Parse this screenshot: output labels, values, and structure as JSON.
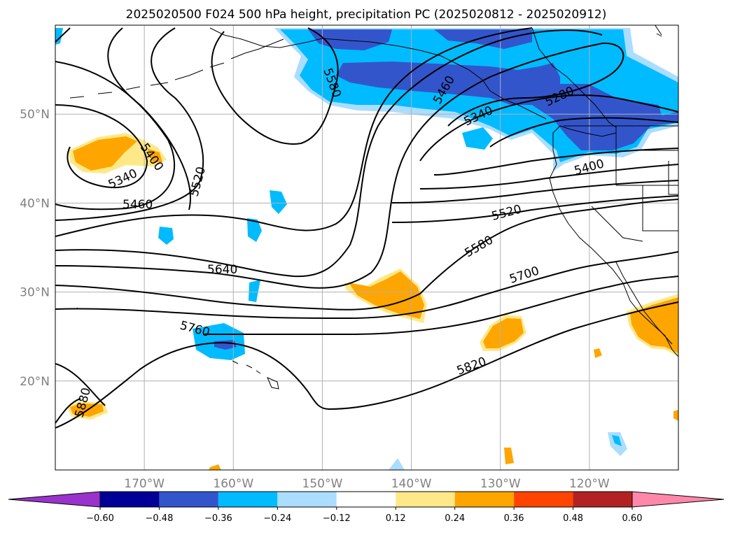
{
  "title": "2025020500 F024 500 hPa height, precipitation PC (2025020812 - 2025020912)",
  "map": {
    "lon_range": [
      -180,
      -110
    ],
    "lat_range": [
      10,
      60
    ],
    "lon_ticks": [
      {
        "lon": -170,
        "label": "170°W"
      },
      {
        "lon": -160,
        "label": "160°W"
      },
      {
        "lon": -150,
        "label": "150°W"
      },
      {
        "lon": -140,
        "label": "140°W"
      },
      {
        "lon": -130,
        "label": "130°W"
      },
      {
        "lon": -120,
        "label": "120°W"
      }
    ],
    "lat_ticks": [
      {
        "lat": 20,
        "label": "20°N"
      },
      {
        "lat": 30,
        "label": "30°N"
      },
      {
        "lat": 40,
        "label": "40°N"
      },
      {
        "lat": 50,
        "label": "50°N"
      }
    ],
    "grid": true,
    "height_contour_labels": [
      "5280",
      "5340",
      "5340",
      "5400",
      "5400",
      "5460",
      "5460",
      "5520",
      "5520",
      "5580",
      "5580",
      "5640",
      "5700",
      "5760",
      "5820",
      "5880"
    ]
  },
  "colorbar": {
    "ticks": [
      "−0.60",
      "−0.48",
      "−0.36",
      "−0.24",
      "−0.12",
      "0.12",
      "0.24",
      "0.36",
      "0.48",
      "0.60"
    ],
    "colors": [
      "#9933cc",
      "#000099",
      "#3355cc",
      "#00bbff",
      "#aaddff",
      "#ffffff",
      "#ffe888",
      "#ffa500",
      "#ff4400",
      "#b22222",
      "#ff88aa"
    ],
    "extend": "both"
  }
}
